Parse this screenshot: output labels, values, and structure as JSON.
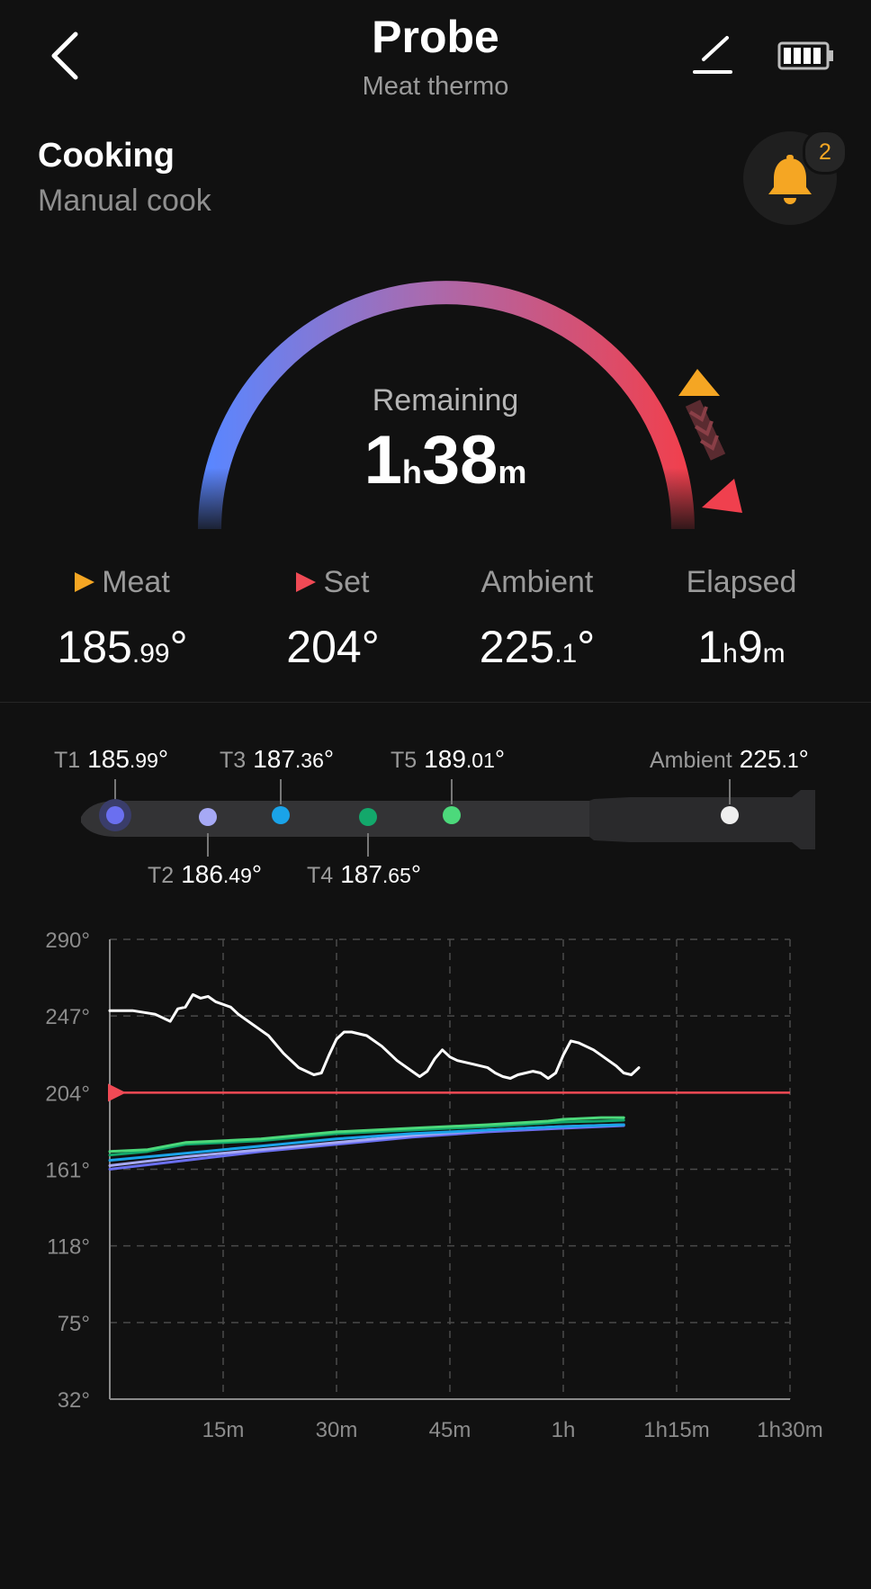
{
  "header": {
    "title": "Probe",
    "subtitle": "Meat thermo",
    "back_icon": "chevron-left-icon",
    "edit_icon": "edit-icon",
    "battery_icon": "battery-full-icon"
  },
  "status": {
    "title": "Cooking",
    "subtitle": "Manual cook"
  },
  "notifications": {
    "icon": "bell-icon",
    "count": "2",
    "color": "#f5a623"
  },
  "remaining": {
    "label": "Remaining",
    "hours": "1",
    "hours_unit": "h",
    "minutes": "38",
    "minutes_unit": "m"
  },
  "stats": {
    "meat": {
      "label": "Meat",
      "value_main": "185",
      "value_dec": ".99",
      "deg": "°",
      "marker_color": "#f5a623"
    },
    "set": {
      "label": "Set",
      "value": "204°",
      "marker_color": "#f04a55"
    },
    "ambient": {
      "label": "Ambient",
      "value_main": "225",
      "value_dec": ".1",
      "deg": "°"
    },
    "elapsed": {
      "label": "Elapsed",
      "hours": "1",
      "hours_unit": "h",
      "minutes": "9",
      "minutes_unit": "m"
    }
  },
  "sensors": [
    {
      "name": "T1",
      "main": "185",
      "dec": ".99",
      "deg": "°",
      "color": "#6a6ff0"
    },
    {
      "name": "T2",
      "main": "186",
      "dec": ".49",
      "deg": "°",
      "color": "#a6a9f5"
    },
    {
      "name": "T3",
      "main": "187",
      "dec": ".36",
      "deg": "°",
      "color": "#1aa3e8"
    },
    {
      "name": "T4",
      "main": "187",
      "dec": ".65",
      "deg": "°",
      "color": "#13a86b"
    },
    {
      "name": "T5",
      "main": "189",
      "dec": ".01",
      "deg": "°",
      "color": "#4cd97b"
    },
    {
      "name": "Ambient",
      "main": "225",
      "dec": ".1",
      "deg": "°",
      "color": "#eeeeee"
    }
  ],
  "chart_data": {
    "type": "line",
    "y_ticks": [
      "290°",
      "247°",
      "204°",
      "161°",
      "118°",
      "75°",
      "32°"
    ],
    "ylim": [
      32,
      290
    ],
    "x_ticks": [
      "15m",
      "30m",
      "45m",
      "1h",
      "1h15m",
      "1h30m"
    ],
    "xlim_minutes": [
      0,
      90
    ],
    "grid": true,
    "set_line": {
      "value": 204,
      "color": "#f04a55"
    },
    "series": [
      {
        "color": "#ffffff",
        "points": [
          [
            0,
            250
          ],
          [
            3,
            250
          ],
          [
            6,
            248
          ],
          [
            8,
            244
          ],
          [
            9,
            251
          ],
          [
            10,
            252
          ],
          [
            11,
            259
          ],
          [
            12,
            257
          ],
          [
            13,
            258
          ],
          [
            14,
            255
          ],
          [
            16,
            252
          ],
          [
            17,
            248
          ],
          [
            19,
            242
          ],
          [
            21,
            236
          ],
          [
            23,
            226
          ],
          [
            25,
            218
          ],
          [
            27,
            214
          ],
          [
            28,
            215
          ],
          [
            29,
            225
          ],
          [
            30,
            234
          ],
          [
            31,
            238
          ],
          [
            32,
            238
          ],
          [
            34,
            236
          ],
          [
            36,
            230
          ],
          [
            38,
            222
          ],
          [
            40,
            216
          ],
          [
            41,
            213
          ],
          [
            42,
            216
          ],
          [
            43,
            223
          ],
          [
            44,
            228
          ],
          [
            45,
            224
          ],
          [
            46,
            222
          ],
          [
            48,
            220
          ],
          [
            50,
            218
          ],
          [
            51,
            215
          ],
          [
            52,
            213
          ],
          [
            53,
            212
          ],
          [
            54,
            214
          ],
          [
            56,
            216
          ],
          [
            57,
            215
          ],
          [
            58,
            212
          ],
          [
            59,
            215
          ],
          [
            60,
            225
          ],
          [
            61,
            233
          ],
          [
            62,
            232
          ],
          [
            64,
            228
          ],
          [
            65,
            225
          ],
          [
            66,
            222
          ],
          [
            67,
            219
          ],
          [
            68,
            215
          ],
          [
            69,
            214
          ],
          [
            70,
            218
          ]
        ]
      },
      {
        "color": "#4cd97b",
        "points": [
          [
            0,
            171
          ],
          [
            5,
            172
          ],
          [
            10,
            176
          ],
          [
            20,
            178
          ],
          [
            30,
            182
          ],
          [
            40,
            184
          ],
          [
            50,
            186
          ],
          [
            58,
            188
          ],
          [
            60,
            189
          ],
          [
            65,
            190
          ],
          [
            68,
            190
          ]
        ]
      },
      {
        "color": "#13a86b",
        "points": [
          [
            0,
            169
          ],
          [
            5,
            171
          ],
          [
            10,
            175
          ],
          [
            20,
            177
          ],
          [
            30,
            181
          ],
          [
            40,
            183
          ],
          [
            50,
            185
          ],
          [
            58,
            187
          ],
          [
            60,
            187.5
          ],
          [
            65,
            188
          ],
          [
            68,
            188.5
          ]
        ]
      },
      {
        "color": "#1aa3e8",
        "points": [
          [
            0,
            166
          ],
          [
            10,
            170
          ],
          [
            20,
            174
          ],
          [
            30,
            178
          ],
          [
            40,
            181
          ],
          [
            50,
            183
          ],
          [
            60,
            185
          ],
          [
            68,
            186
          ]
        ]
      },
      {
        "color": "#a6a9f5",
        "points": [
          [
            0,
            163
          ],
          [
            10,
            168
          ],
          [
            20,
            172
          ],
          [
            30,
            176
          ],
          [
            40,
            180
          ],
          [
            50,
            183
          ],
          [
            60,
            185
          ],
          [
            68,
            186
          ]
        ]
      },
      {
        "color": "#6a6ff0",
        "points": [
          [
            0,
            161
          ],
          [
            10,
            166
          ],
          [
            20,
            171
          ],
          [
            30,
            175
          ],
          [
            40,
            179
          ],
          [
            50,
            182
          ],
          [
            60,
            184
          ],
          [
            68,
            185.5
          ]
        ]
      }
    ]
  }
}
